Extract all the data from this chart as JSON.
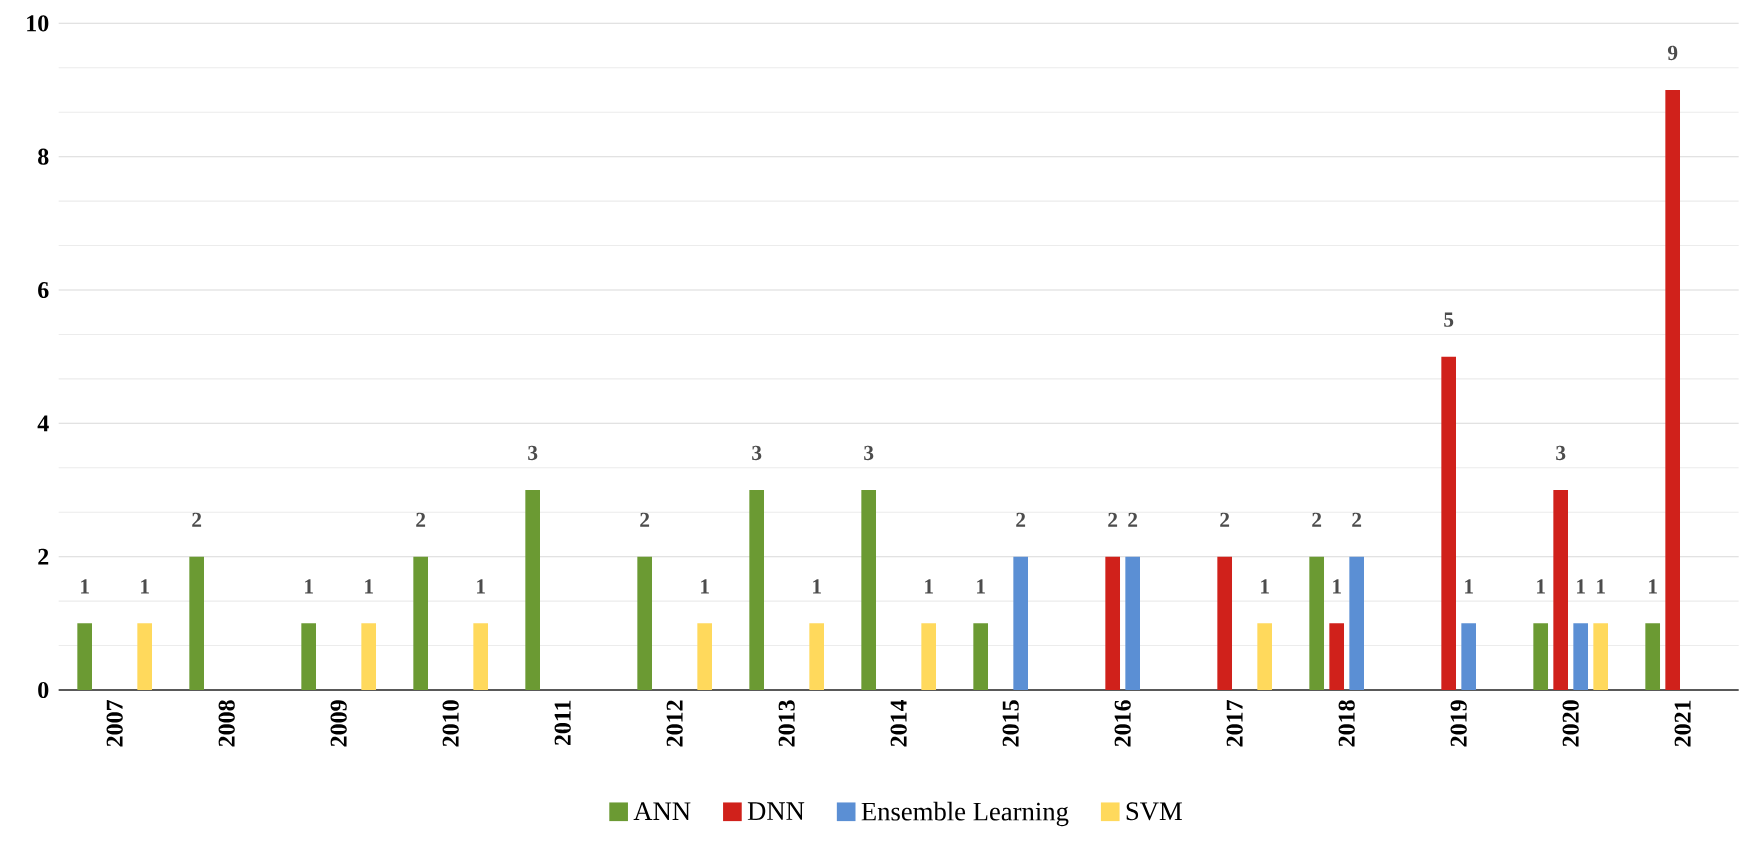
{
  "chart_data": {
    "type": "bar",
    "categories": [
      "2007",
      "2008",
      "2009",
      "2010",
      "2011",
      "2012",
      "2013",
      "2014",
      "2015",
      "2016",
      "2017",
      "2018",
      "2019",
      "2020",
      "2021"
    ],
    "series": [
      {
        "name": "ANN",
        "color": "#6b9a33",
        "values": [
          1,
          2,
          1,
          2,
          3,
          2,
          3,
          3,
          1,
          null,
          null,
          2,
          null,
          1,
          1
        ]
      },
      {
        "name": "DNN",
        "color": "#d0211b",
        "values": [
          null,
          null,
          null,
          null,
          null,
          null,
          null,
          null,
          null,
          2,
          2,
          1,
          5,
          3,
          9
        ]
      },
      {
        "name": "Ensemble Learning",
        "color": "#5b8fd4",
        "values": [
          null,
          null,
          null,
          null,
          null,
          null,
          null,
          null,
          2,
          2,
          null,
          2,
          1,
          1,
          null
        ]
      },
      {
        "name": "SVM",
        "color": "#ffd95c",
        "values": [
          1,
          null,
          1,
          1,
          null,
          1,
          1,
          1,
          null,
          null,
          1,
          null,
          null,
          1,
          null
        ]
      }
    ],
    "ylim": [
      0,
      10
    ],
    "yticks": [
      0,
      2,
      4,
      6,
      8,
      10
    ],
    "grid": "y",
    "legend": "bottom",
    "data_labels": true
  }
}
